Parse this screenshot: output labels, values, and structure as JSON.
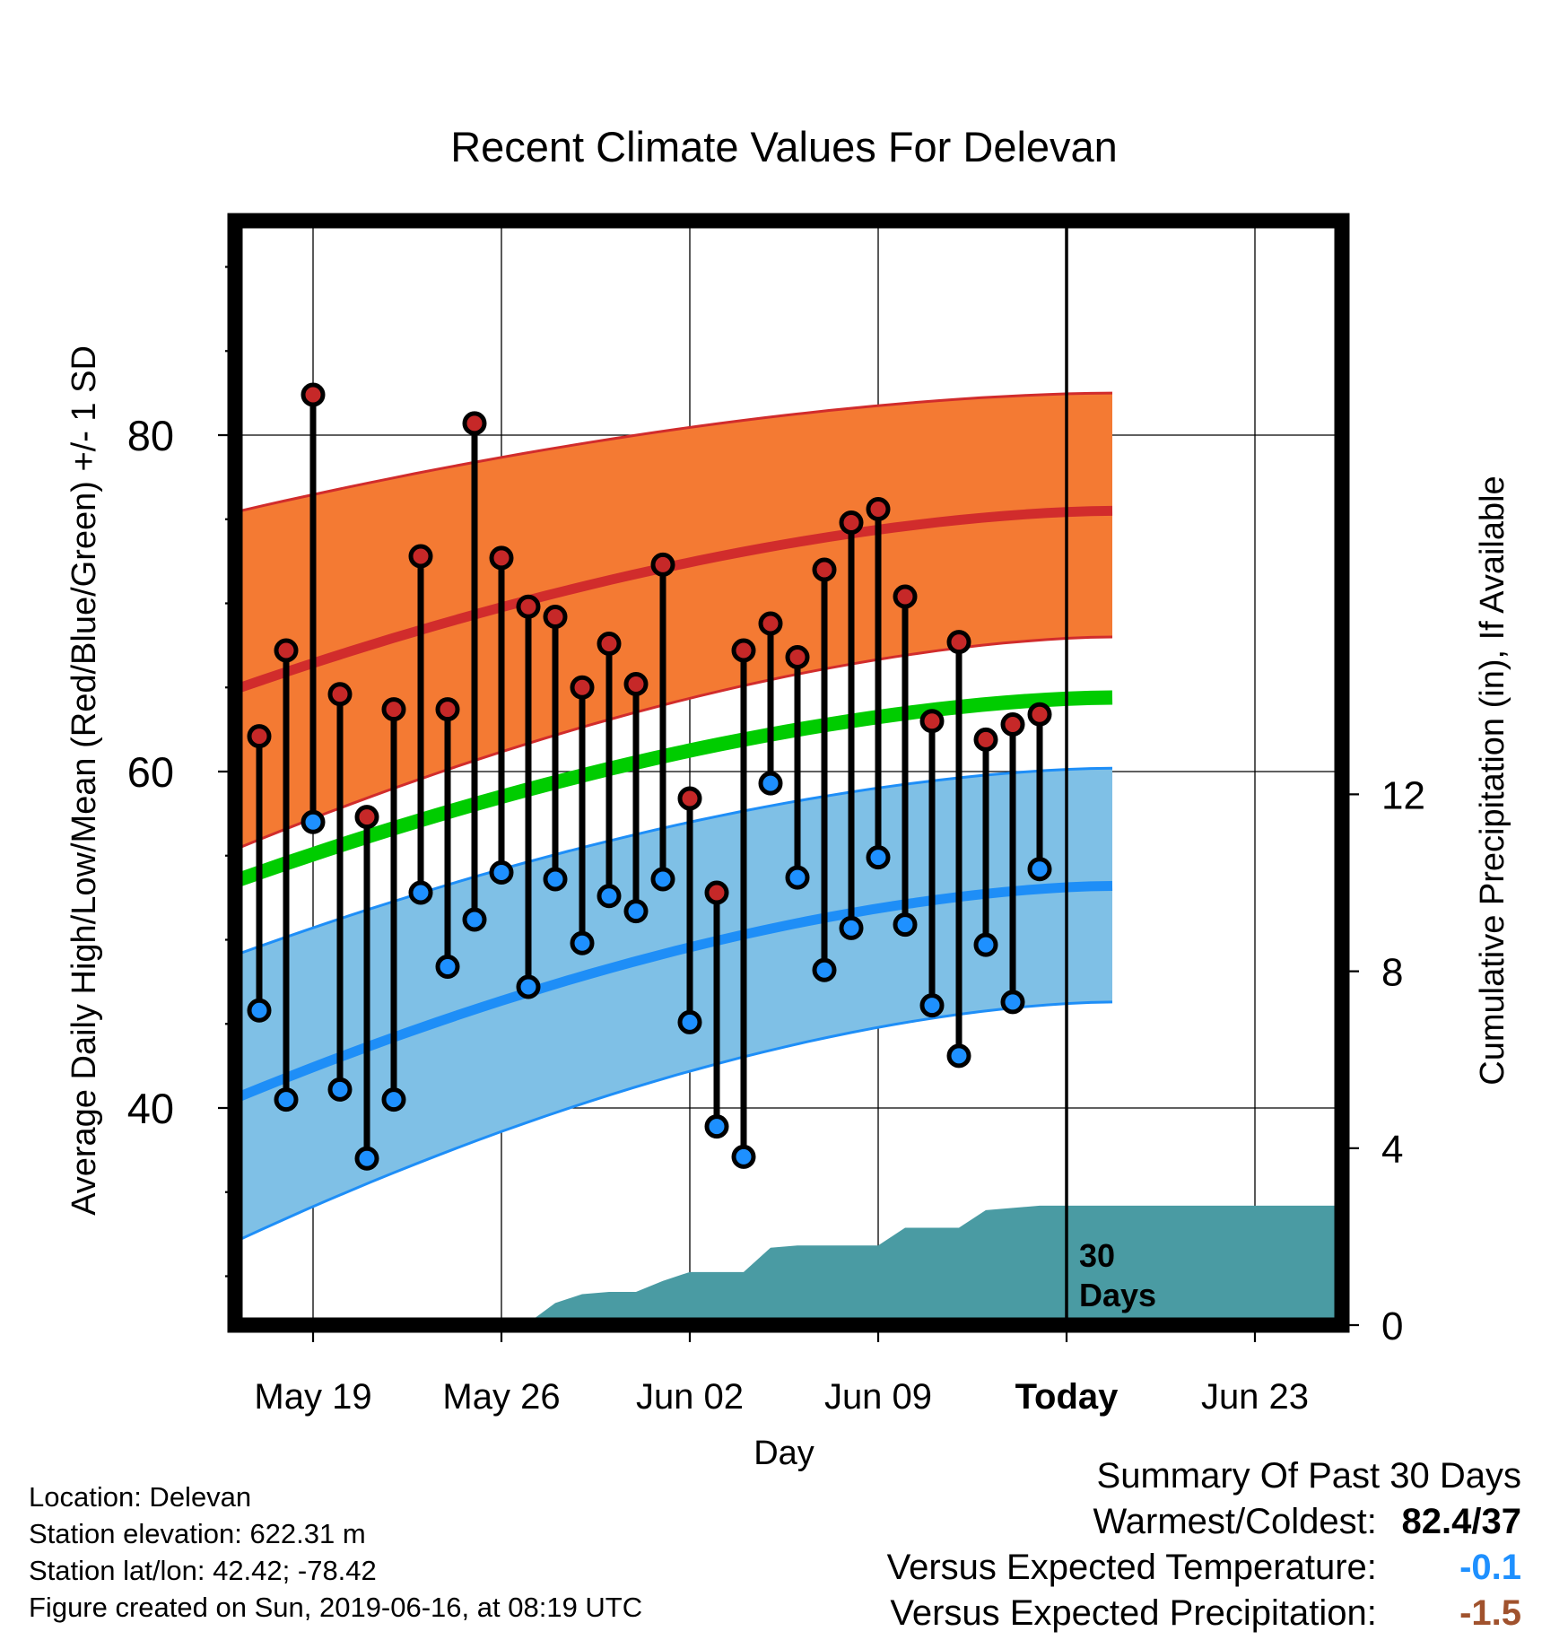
{
  "chart_data": {
    "type": "line",
    "title": "Recent Climate Values For Delevan",
    "xlabel": "Day",
    "ylabel": "Average Daily High/Low/Mean (Red/Blue/Green) +/- 1 SD",
    "y2label": "Cumulative Precipitation (in), If Available",
    "x_tick_labels": [
      "May 19",
      "May 26",
      "Jun 02",
      "Jun 09",
      "Today",
      "Jun 23"
    ],
    "y_ticks": [
      40,
      60,
      80
    ],
    "y2_ticks": [
      0,
      4,
      8,
      12
    ],
    "ylim": [
      27.5,
      92.5
    ],
    "y2lim": [
      0,
      24
    ],
    "today_annotation": "30 Days",
    "days": [
      "May 17",
      "May 18",
      "May 19",
      "May 20",
      "May 21",
      "May 22",
      "May 23",
      "May 24",
      "May 25",
      "May 26",
      "May 27",
      "May 28",
      "May 29",
      "May 30",
      "May 31",
      "Jun 01",
      "Jun 02",
      "Jun 03",
      "Jun 04",
      "Jun 05",
      "Jun 06",
      "Jun 07",
      "Jun 08",
      "Jun 09",
      "Jun 10",
      "Jun 11",
      "Jun 12",
      "Jun 13",
      "Jun 14",
      "Jun 15"
    ],
    "daily_high": [
      62.1,
      67.2,
      82.4,
      64.6,
      57.3,
      63.7,
      72.8,
      63.7,
      80.7,
      72.7,
      69.8,
      69.2,
      65.0,
      67.6,
      65.2,
      72.3,
      58.4,
      52.8,
      67.2,
      68.8,
      66.8,
      72.0,
      74.8,
      75.6,
      70.4,
      63.0,
      67.7,
      61.9,
      62.8,
      63.4
    ],
    "daily_low": [
      45.8,
      40.5,
      57.0,
      41.1,
      37.0,
      40.5,
      52.8,
      48.4,
      51.2,
      54.0,
      47.2,
      53.6,
      49.8,
      52.6,
      51.7,
      53.6,
      45.1,
      38.9,
      37.1,
      59.3,
      53.7,
      48.2,
      50.7,
      54.9,
      50.9,
      46.1,
      43.1,
      49.7,
      46.3,
      54.2
    ],
    "normal_day_index": [
      -0.7,
      31.7
    ],
    "normal_high": [
      65.0,
      75.5
    ],
    "normal_high_upper": [
      75.5,
      82.5
    ],
    "normal_high_lower": [
      55.5,
      68.0
    ],
    "normal_low": [
      40.7,
      53.2
    ],
    "normal_low_upper": [
      49.2,
      60.2
    ],
    "normal_low_lower": [
      32.2,
      46.3
    ],
    "normal_mean": [
      53.6,
      64.4
    ],
    "cumulative_precip": [
      0,
      0,
      0,
      0,
      0,
      0,
      0,
      0,
      0,
      0,
      0.05,
      0.5,
      0.7,
      0.75,
      0.75,
      1.0,
      1.2,
      1.2,
      1.2,
      1.75,
      1.8,
      1.8,
      1.8,
      1.8,
      2.2,
      2.2,
      2.2,
      2.6,
      2.65,
      2.7
    ],
    "precip_future_value": 2.7,
    "grid": true,
    "colors": {
      "high_marker": "#c62828",
      "low_marker": "#1e90ff",
      "high_band": "#f47a33",
      "high_line": "#d12c2c",
      "low_band": "#7fc0e6",
      "low_line": "#1e8ef7",
      "mean_line": "#00cc00",
      "precip": "#4a9ba3"
    }
  },
  "location": "Location: Delevan",
  "elevation": "Station elevation: 622.31 m",
  "latlon": "Station lat/lon: 42.42; -78.42",
  "created": "Figure created on Sun, 2019-06-16, at 08:19 UTC",
  "summary": {
    "heading": "Summary Of Past 30 Days",
    "warmest_coldest_label": "Warmest/Coldest:",
    "warmest_coldest_value": "82.4/37",
    "temp_label": "Versus Expected Temperature:",
    "temp_value": "-0.1",
    "temp_color": "#1e90ff",
    "precip_label": "Versus Expected Precipitation:",
    "precip_value": "-1.5",
    "precip_color": "#a0522d"
  }
}
